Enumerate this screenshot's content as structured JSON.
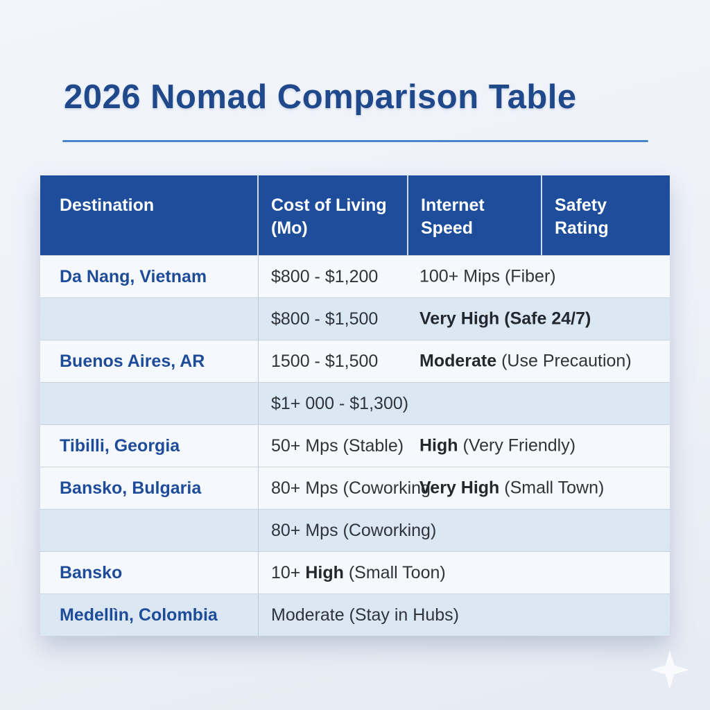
{
  "title": "2026 Nomad Comparison Table",
  "colors": {
    "header_bg": "#1e4d9b",
    "shade_row_bg": "#dce7f4",
    "white_row_bg": "#f5f8fc",
    "title_text": "#20498b",
    "destination_text": "#1e4c99",
    "body_text": "#2f343b",
    "title_rule": "#4a85c9"
  },
  "table": {
    "headers": [
      "Destination",
      "Cost of Living (Mo)",
      "Internet Speed",
      "Safety Rating"
    ],
    "rows": [
      {
        "destination": "Da Nang, Vietnam",
        "shade": false,
        "col2": [
          {
            "t": "$800 - $1,200",
            "b": false
          }
        ],
        "col3": [
          {
            "t": "100+ Mips (Fiber)",
            "b": false
          }
        ]
      },
      {
        "destination": "",
        "shade": true,
        "col2": [
          {
            "t": "$800 - $1,500",
            "b": false
          }
        ],
        "col3": [
          {
            "t": "Very High (Safe 24/7)",
            "b": true
          }
        ]
      },
      {
        "destination": "Buenos Aires, AR",
        "shade": false,
        "col2": [
          {
            "t": "1500 - $1,500",
            "b": false
          }
        ],
        "col3": [
          {
            "t": "Moderate",
            "b": true
          },
          {
            "t": " (Use Precaution)",
            "b": false
          }
        ]
      },
      {
        "destination": "",
        "shade": true,
        "col2": [
          {
            "t": "$1+ 000 - $1,300)",
            "b": false
          }
        ],
        "col3": []
      },
      {
        "destination": "Tibilli, Georgia",
        "shade": false,
        "col2": [
          {
            "t": "50+ Mps (Stable)",
            "b": false
          }
        ],
        "col3": [
          {
            "t": "High",
            "b": true
          },
          {
            "t": " (Very Friendly)",
            "b": false
          }
        ]
      },
      {
        "destination": "Bansko, Bulgaria",
        "shade": false,
        "col2": [
          {
            "t": "80+ Mps (Coworking",
            "b": false
          }
        ],
        "col3": [
          {
            "t": "Very High",
            "b": true
          },
          {
            "t": " (Small Town)",
            "b": false
          }
        ]
      },
      {
        "destination": "",
        "shade": true,
        "col2": [
          {
            "t": "80+ Mps (Coworking)",
            "b": false
          }
        ],
        "col3": []
      },
      {
        "destination": "Bansko",
        "shade": false,
        "col2": [
          {
            "t": "10+ ",
            "b": false
          },
          {
            "t": "High",
            "b": true
          },
          {
            "t": " (Small Toon)",
            "b": false
          }
        ],
        "col3": []
      },
      {
        "destination": "Medellìn, Colombia",
        "shade": true,
        "col2": [
          {
            "t": "Moderate (Stay in Hubs)",
            "b": false
          }
        ],
        "col3": []
      }
    ]
  },
  "chart_data": {
    "type": "table",
    "title": "2026 Nomad Comparison Table",
    "columns": [
      "Destination",
      "Cost of Living (Mo)",
      "Internet Speed",
      "Safety Rating"
    ],
    "rows": [
      [
        "Da Nang, Vietnam",
        "$800 - $1,200",
        "100+ Mips (Fiber)",
        ""
      ],
      [
        "",
        "$800 - $1,500",
        "Very High (Safe 24/7)",
        ""
      ],
      [
        "Buenos Aires, AR",
        "1500 - $1,500",
        "Moderate (Use Precaution)",
        ""
      ],
      [
        "",
        "$1+ 000 - $1,300)",
        "",
        ""
      ],
      [
        "Tibilli, Georgia",
        "50+ Mps (Stable)",
        "High (Very Friendly)",
        ""
      ],
      [
        "Bansko, Bulgaria",
        "80+ Mps (Coworking",
        "Very High (Small Town)",
        ""
      ],
      [
        "",
        "80+ Mps (Coworking)",
        "",
        ""
      ],
      [
        "Bansko",
        "10+ High (Small Toon)",
        "",
        ""
      ],
      [
        "Medellìn, Colombia",
        "Moderate (Stay in Hubs)",
        "",
        ""
      ]
    ]
  }
}
